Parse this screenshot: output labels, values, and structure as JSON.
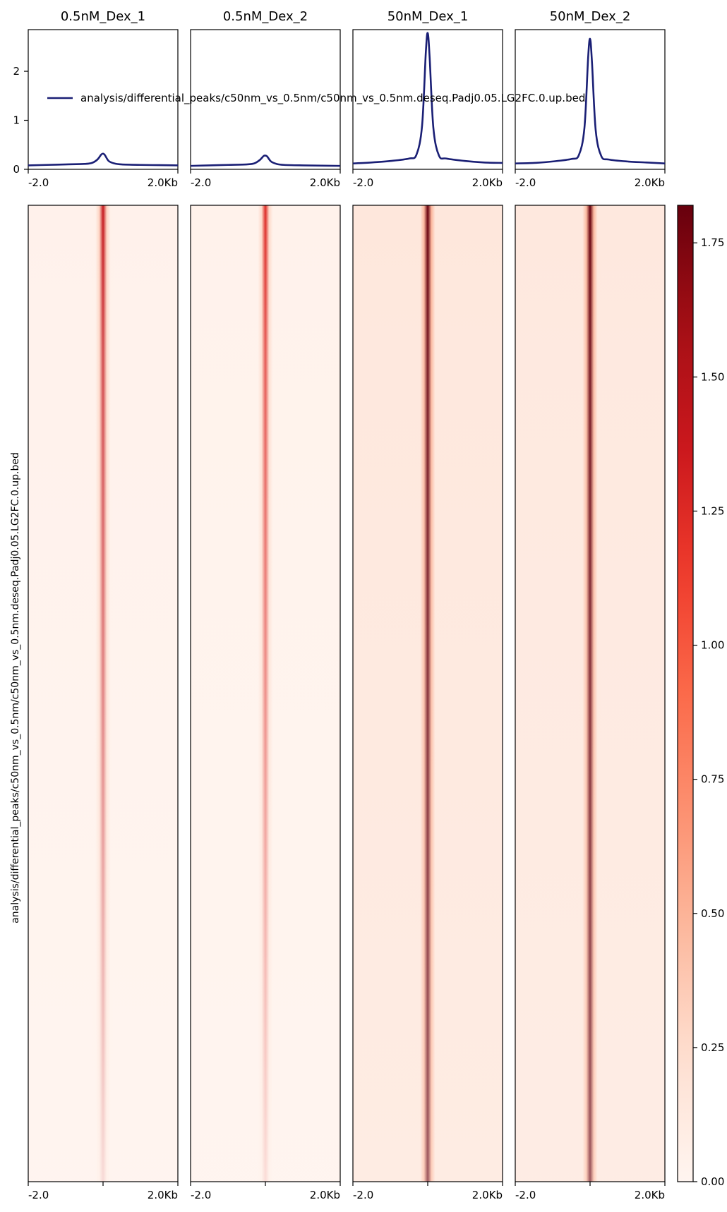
{
  "chart_data": {
    "type": "heatmap",
    "region_label": "analysis/differential_peaks/c50nm_vs_0.5nm/c50nm_vs_0.5nm.deseq.Padj0.05.LG2FC.0.up.bed",
    "x_tick_labels": [
      "-2.0",
      "2.0Kb"
    ],
    "x_range_kb": [
      -2.0,
      2.0
    ],
    "samples": [
      {
        "title": "0.5nM_Dex_1",
        "profile_x_kb": [
          -2.0,
          -1.5,
          -1.0,
          -0.5,
          -0.3,
          -0.15,
          -0.05,
          0.0,
          0.05,
          0.15,
          0.3,
          0.5,
          1.0,
          1.5,
          2.0
        ],
        "profile_y": [
          0.08,
          0.09,
          0.1,
          0.11,
          0.13,
          0.2,
          0.3,
          0.32,
          0.29,
          0.17,
          0.12,
          0.1,
          0.09,
          0.085,
          0.08
        ],
        "heat_center": 1.4,
        "heat_bg": 0.04
      },
      {
        "title": "0.5nM_Dex_2",
        "profile_x_kb": [
          -2.0,
          -1.5,
          -1.0,
          -0.5,
          -0.3,
          -0.15,
          -0.05,
          0.0,
          0.05,
          0.15,
          0.3,
          0.5,
          1.0,
          1.5,
          2.0
        ],
        "profile_y": [
          0.07,
          0.08,
          0.09,
          0.1,
          0.12,
          0.19,
          0.27,
          0.28,
          0.26,
          0.16,
          0.11,
          0.09,
          0.08,
          0.075,
          0.07
        ],
        "heat_center": 1.25,
        "heat_bg": 0.035
      },
      {
        "title": "50nM_Dex_1",
        "profile_x_kb": [
          -2.0,
          -1.5,
          -1.0,
          -0.5,
          -0.3,
          -0.15,
          -0.05,
          0.0,
          0.05,
          0.15,
          0.3,
          0.5,
          1.0,
          1.5,
          2.0
        ],
        "profile_y": [
          0.12,
          0.14,
          0.17,
          0.22,
          0.3,
          0.9,
          2.4,
          2.78,
          2.3,
          0.85,
          0.28,
          0.22,
          0.17,
          0.14,
          0.13
        ],
        "heat_center": 1.82,
        "heat_bg": 0.15
      },
      {
        "title": "50nM_Dex_2",
        "profile_x_kb": [
          -2.0,
          -1.5,
          -1.0,
          -0.5,
          -0.3,
          -0.15,
          -0.05,
          0.0,
          0.05,
          0.15,
          0.3,
          0.5,
          1.0,
          1.5,
          2.0
        ],
        "profile_y": [
          0.12,
          0.13,
          0.16,
          0.21,
          0.29,
          0.85,
          2.3,
          2.66,
          2.2,
          0.8,
          0.27,
          0.2,
          0.16,
          0.14,
          0.12
        ],
        "heat_center": 1.82,
        "heat_bg": 0.14
      }
    ],
    "profile": {
      "ylim": [
        0,
        2.85
      ],
      "yticks": [
        "0",
        "1",
        "2"
      ],
      "line_color": "#1a1f75",
      "legend_label": "analysis/differential_peaks/c50nm_vs_0.5nm/c50nm_vs_0.5nm.deseq.Padj0.05.LG2FC.0.up.bed"
    },
    "colorbar": {
      "range": [
        0,
        1.82
      ],
      "tick_values": [
        0,
        0.25,
        0.5,
        0.75,
        1.0,
        1.25,
        1.5,
        1.75
      ],
      "tick_labels": [
        "0.00",
        "0.25",
        "0.50",
        "0.75",
        "1.00",
        "1.25",
        "1.50",
        "1.75"
      ],
      "colormap": "Reds",
      "color_low": "#fff5f0",
      "color_high": "#67000d"
    }
  }
}
